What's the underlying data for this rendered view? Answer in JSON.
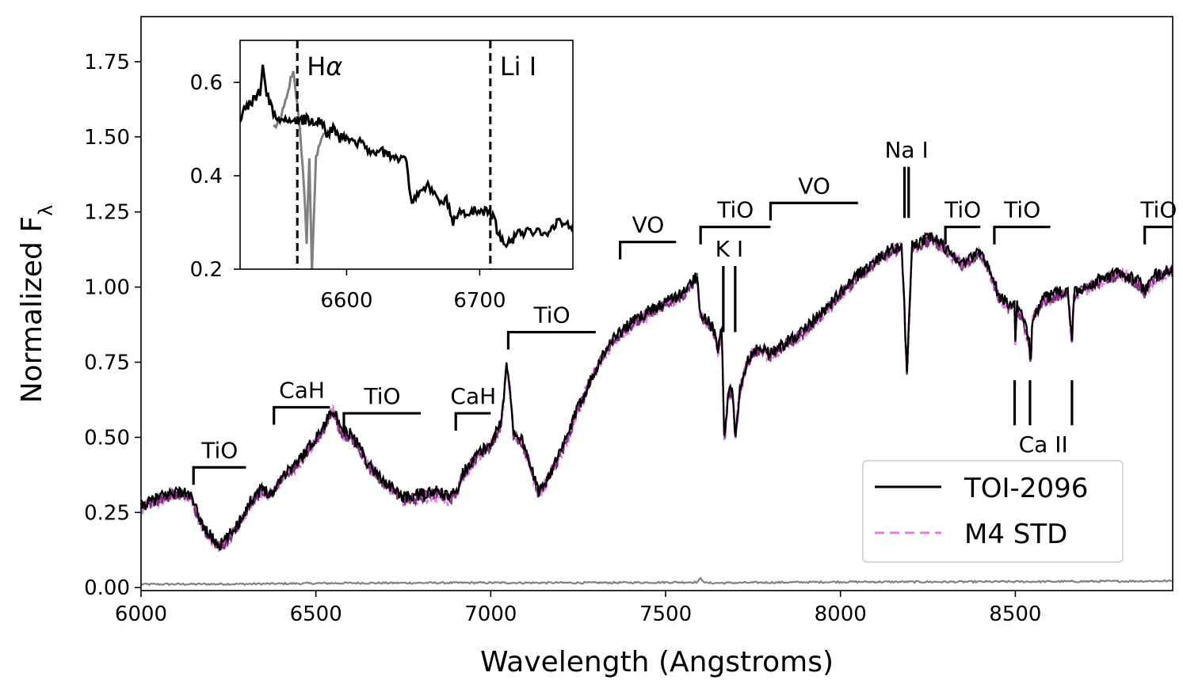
{
  "chart_data": [
    {
      "type": "line",
      "xlabel": "Wavelength (Angstroms)",
      "ylabel_text": "Normalized F",
      "ylabel_sub": "λ",
      "xlim": [
        6000,
        8950
      ],
      "ylim": [
        -0.01,
        1.9
      ],
      "x_ticks": [
        6000,
        6500,
        7000,
        7500,
        8000,
        8500
      ],
      "x_tick_labels": [
        "6000",
        "6500",
        "7000",
        "7500",
        "8000",
        "8500"
      ],
      "y_ticks": [
        0.0,
        0.25,
        0.5,
        0.75,
        1.0,
        1.25,
        1.5,
        1.75
      ],
      "y_tick_labels": [
        "0.00",
        "0.25",
        "0.50",
        "0.75",
        "1.00",
        "1.25",
        "1.50",
        "1.75"
      ],
      "grid": false,
      "legend_position": "lower-right",
      "series": [
        {
          "name": "TOI-2096",
          "color": "#000000",
          "style": "solid",
          "anchors": [
            [
              6000,
              0.27
            ],
            [
              6050,
              0.3
            ],
            [
              6100,
              0.32
            ],
            [
              6140,
              0.31
            ],
            [
              6160,
              0.25
            ],
            [
              6180,
              0.2
            ],
            [
              6200,
              0.17
            ],
            [
              6225,
              0.14
            ],
            [
              6250,
              0.17
            ],
            [
              6275,
              0.21
            ],
            [
              6300,
              0.26
            ],
            [
              6325,
              0.31
            ],
            [
              6350,
              0.33
            ],
            [
              6375,
              0.31
            ],
            [
              6400,
              0.37
            ],
            [
              6450,
              0.42
            ],
            [
              6500,
              0.5
            ],
            [
              6530,
              0.55
            ],
            [
              6545,
              0.6
            ],
            [
              6555,
              0.58
            ],
            [
              6570,
              0.52
            ],
            [
              6600,
              0.51
            ],
            [
              6625,
              0.47
            ],
            [
              6650,
              0.41
            ],
            [
              6700,
              0.35
            ],
            [
              6750,
              0.3
            ],
            [
              6800,
              0.31
            ],
            [
              6850,
              0.32
            ],
            [
              6880,
              0.3
            ],
            [
              6900,
              0.32
            ],
            [
              6920,
              0.38
            ],
            [
              6950,
              0.43
            ],
            [
              7000,
              0.48
            ],
            [
              7030,
              0.55
            ],
            [
              7045,
              0.74
            ],
            [
              7055,
              0.66
            ],
            [
              7065,
              0.52
            ],
            [
              7090,
              0.49
            ],
            [
              7105,
              0.44
            ],
            [
              7120,
              0.38
            ],
            [
              7135,
              0.32
            ],
            [
              7150,
              0.34
            ],
            [
              7200,
              0.45
            ],
            [
              7250,
              0.6
            ],
            [
              7300,
              0.73
            ],
            [
              7350,
              0.83
            ],
            [
              7400,
              0.88
            ],
            [
              7450,
              0.92
            ],
            [
              7500,
              0.95
            ],
            [
              7550,
              0.98
            ],
            [
              7590,
              1.04
            ],
            [
              7600,
              0.91
            ],
            [
              7620,
              0.89
            ],
            [
              7640,
              0.85
            ],
            [
              7650,
              0.79
            ],
            [
              7660,
              0.87
            ],
            [
              7668,
              0.48
            ],
            [
              7678,
              0.64
            ],
            [
              7690,
              0.66
            ],
            [
              7700,
              0.5
            ],
            [
              7712,
              0.66
            ],
            [
              7730,
              0.74
            ],
            [
              7750,
              0.79
            ],
            [
              7770,
              0.8
            ],
            [
              7800,
              0.78
            ],
            [
              7850,
              0.82
            ],
            [
              7900,
              0.86
            ],
            [
              7950,
              0.92
            ],
            [
              8000,
              0.98
            ],
            [
              8050,
              1.04
            ],
            [
              8100,
              1.09
            ],
            [
              8150,
              1.13
            ],
            [
              8175,
              1.14
            ],
            [
              8183,
              0.92
            ],
            [
              8190,
              0.7
            ],
            [
              8197,
              0.92
            ],
            [
              8205,
              1.14
            ],
            [
              8230,
              1.15
            ],
            [
              8260,
              1.17
            ],
            [
              8300,
              1.13
            ],
            [
              8350,
              1.08
            ],
            [
              8400,
              1.12
            ],
            [
              8430,
              1.05
            ],
            [
              8450,
              0.98
            ],
            [
              8480,
              0.94
            ],
            [
              8498,
              0.95
            ],
            [
              8500,
              0.82
            ],
            [
              8504,
              0.94
            ],
            [
              8520,
              0.9
            ],
            [
              8540,
              0.82
            ],
            [
              8544,
              0.75
            ],
            [
              8548,
              0.9
            ],
            [
              8580,
              0.96
            ],
            [
              8620,
              0.98
            ],
            [
              8650,
              0.99
            ],
            [
              8662,
              0.82
            ],
            [
              8668,
              0.98
            ],
            [
              8700,
              1.0
            ],
            [
              8750,
              1.03
            ],
            [
              8800,
              1.05
            ],
            [
              8850,
              1.02
            ],
            [
              8870,
              0.99
            ],
            [
              8900,
              1.04
            ],
            [
              8950,
              1.06
            ]
          ]
        },
        {
          "name": "M4 STD",
          "color": "#e07ee0",
          "style": "dashed"
        },
        {
          "name": "",
          "color": "#808080",
          "style": "solid",
          "anchors": [
            [
              6000,
              0.011
            ],
            [
              6300,
              0.012
            ],
            [
              6600,
              0.015
            ],
            [
              7000,
              0.016
            ],
            [
              7300,
              0.016
            ],
            [
              7590,
              0.018
            ],
            [
              7600,
              0.03
            ],
            [
              7615,
              0.015
            ],
            [
              8000,
              0.019
            ],
            [
              8300,
              0.019
            ],
            [
              8600,
              0.02
            ],
            [
              8950,
              0.022
            ]
          ]
        }
      ],
      "annotations": [
        {
          "label": "TiO",
          "type": "band",
          "x_start": 6150,
          "x_end": 6300,
          "y": 0.4
        },
        {
          "label": "CaH",
          "type": "band",
          "x_start": 6380,
          "x_end": 6540,
          "y": 0.6
        },
        {
          "label": "TiO",
          "type": "band",
          "x_start": 6580,
          "x_end": 6800,
          "y": 0.58
        },
        {
          "label": "CaH",
          "type": "band",
          "x_start": 6900,
          "x_end": 7000,
          "y": 0.58
        },
        {
          "label": "TiO",
          "type": "band",
          "x_start": 7050,
          "x_end": 7300,
          "y": 0.85
        },
        {
          "label": "VO",
          "type": "band",
          "x_start": 7370,
          "x_end": 7530,
          "y": 1.15
        },
        {
          "label": "TiO",
          "type": "band",
          "x_start": 7600,
          "x_end": 7800,
          "y": 1.2
        },
        {
          "label": "VO",
          "type": "band",
          "x_start": 7800,
          "x_end": 8050,
          "y": 1.28
        },
        {
          "label": "TiO",
          "type": "band",
          "x_start": 8300,
          "x_end": 8400,
          "y": 1.2
        },
        {
          "label": "TiO",
          "type": "band",
          "x_start": 8440,
          "x_end": 8600,
          "y": 1.2
        },
        {
          "label": "TiO",
          "type": "band",
          "x_start": 8870,
          "x_end": 8950,
          "y": 1.2
        },
        {
          "label": "K I",
          "type": "lines",
          "x": [
            7665,
            7699
          ],
          "y_top": 1.07,
          "y_bottom": 0.85,
          "label_pos": "top"
        },
        {
          "label": "Na I",
          "type": "lines",
          "x": [
            8183,
            8195
          ],
          "y_top": 1.4,
          "y_bottom": 1.23,
          "label_pos": "top"
        },
        {
          "label": "Ca II",
          "type": "lines",
          "x": [
            8498,
            8542,
            8662
          ],
          "y_top": 0.69,
          "y_bottom": 0.54,
          "label_pos": "bottom"
        }
      ]
    },
    {
      "type": "line",
      "xlim": [
        6520,
        6770
      ],
      "ylim": [
        0.2,
        0.69
      ],
      "x_ticks": [
        6600,
        6700
      ],
      "x_tick_labels": [
        "6600",
        "6700"
      ],
      "y_ticks": [
        0.2,
        0.4,
        0.6
      ],
      "y_tick_labels": [
        "0.2",
        "0.4",
        "0.6"
      ],
      "vlines": [
        {
          "x": 6563,
          "label_text": "H",
          "label_sub": "α"
        },
        {
          "x": 6708,
          "label_text": "Li I",
          "label_sub": ""
        }
      ],
      "series": [
        {
          "color": "#808080",
          "anchors": [
            [
              6545,
              0.5
            ],
            [
              6550,
              0.52
            ],
            [
              6555,
              0.57
            ],
            [
              6560,
              0.63
            ],
            [
              6565,
              0.5
            ],
            [
              6568,
              0.38
            ],
            [
              6570,
              0.26
            ],
            [
              6572,
              0.44
            ],
            [
              6574,
              0.2
            ],
            [
              6577,
              0.44
            ],
            [
              6580,
              0.47
            ],
            [
              6583,
              0.49
            ]
          ]
        },
        {
          "color": "#000000",
          "anchors": [
            [
              6520,
              0.52
            ],
            [
              6525,
              0.55
            ],
            [
              6530,
              0.56
            ],
            [
              6535,
              0.58
            ],
            [
              6537,
              0.64
            ],
            [
              6540,
              0.58
            ],
            [
              6545,
              0.53
            ],
            [
              6550,
              0.52
            ],
            [
              6560,
              0.52
            ],
            [
              6563,
              0.52
            ],
            [
              6565,
              0.52
            ],
            [
              6570,
              0.52
            ],
            [
              6580,
              0.52
            ],
            [
              6585,
              0.49
            ],
            [
              6590,
              0.5
            ],
            [
              6595,
              0.48
            ],
            [
              6600,
              0.48
            ],
            [
              6610,
              0.47
            ],
            [
              6620,
              0.45
            ],
            [
              6630,
              0.45
            ],
            [
              6640,
              0.43
            ],
            [
              6645,
              0.44
            ],
            [
              6648,
              0.35
            ],
            [
              6655,
              0.36
            ],
            [
              6660,
              0.38
            ],
            [
              6670,
              0.35
            ],
            [
              6675,
              0.35
            ],
            [
              6680,
              0.3
            ],
            [
              6685,
              0.32
            ],
            [
              6690,
              0.32
            ],
            [
              6700,
              0.33
            ],
            [
              6706,
              0.32
            ],
            [
              6710,
              0.31
            ],
            [
              6715,
              0.27
            ],
            [
              6720,
              0.25
            ],
            [
              6730,
              0.28
            ],
            [
              6740,
              0.28
            ],
            [
              6750,
              0.28
            ],
            [
              6760,
              0.3
            ],
            [
              6770,
              0.29
            ]
          ]
        }
      ]
    }
  ],
  "legend": {
    "items": [
      "TOI-2096",
      "M4 STD"
    ]
  }
}
